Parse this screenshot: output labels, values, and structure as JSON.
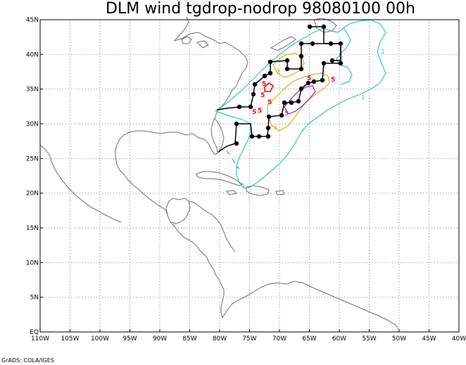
{
  "title": "DLM wind tgdrop-nodrop 98080100 00h",
  "credit": "GrADS: COLA/IGES",
  "lon_labels": [
    "110W",
    "105W",
    "100W",
    "95W",
    "90W",
    "85W",
    "80W",
    "75W",
    "70W",
    "65W",
    "60W",
    "55W",
    "50W",
    "45W",
    "40W"
  ],
  "lat_labels": [
    "EQ",
    "5N",
    "10N",
    "15N",
    "20N",
    "25N",
    "30N",
    "35N",
    "40N",
    "45N"
  ],
  "lon_range": [
    -110,
    -40
  ],
  "lat_range": [
    0,
    45
  ],
  "colors": {
    "coast": "#6e6e6e",
    "grid": "#555555",
    "contour_1": "#33c4cc",
    "contour_3": "#d8b020",
    "contour_5": "#a01ab0",
    "label_5_red": "#ff0000",
    "track": "#000000"
  },
  "contour_labels": {
    "one": "1",
    "three": "3",
    "five": "5"
  }
}
